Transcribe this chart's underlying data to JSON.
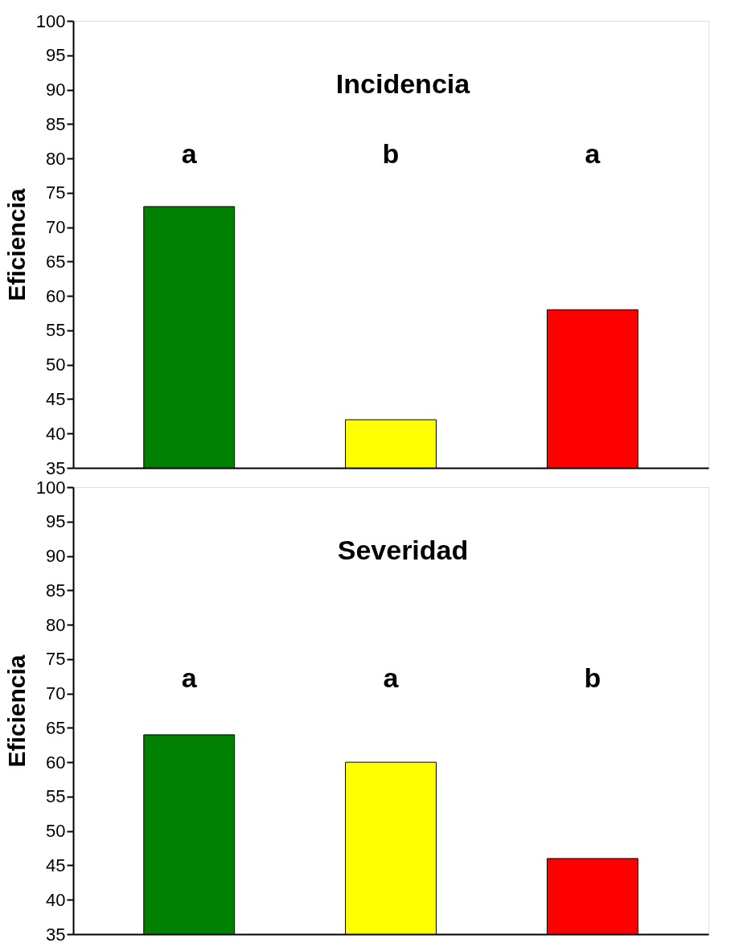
{
  "chart_data": [
    {
      "type": "bar",
      "title": "Incidencia",
      "ylabel": "Eficiencia",
      "categories": [
        null,
        null,
        null
      ],
      "values": [
        73,
        42,
        58
      ],
      "colors": [
        "#008000",
        "#ffff00",
        "#ff0000"
      ],
      "ylim": [
        35,
        100
      ],
      "yticks": [
        35,
        40,
        45,
        50,
        55,
        60,
        65,
        70,
        75,
        80,
        85,
        90,
        95,
        100
      ],
      "grid": false,
      "tick_labels": "y",
      "annotations": [
        "a",
        "b",
        "a"
      ]
    },
    {
      "type": "bar",
      "title": "Severidad",
      "ylabel": "Eficiencia",
      "categories": [
        null,
        null,
        null
      ],
      "values": [
        64,
        60,
        46
      ],
      "colors": [
        "#008000",
        "#ffff00",
        "#ff0000"
      ],
      "ylim": [
        35,
        100
      ],
      "yticks": [
        35,
        40,
        45,
        50,
        55,
        60,
        65,
        70,
        75,
        80,
        85,
        90,
        95,
        100
      ],
      "grid": false,
      "tick_labels": "y",
      "annotations": [
        "a",
        "a",
        "b"
      ]
    }
  ]
}
